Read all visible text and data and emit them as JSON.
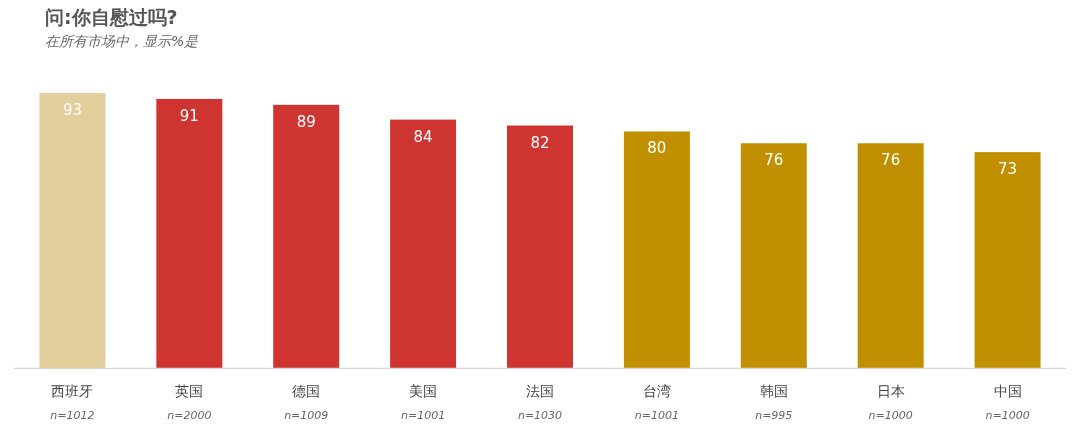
{
  "chart_data": {
    "type": "bar",
    "title": "问:你自慰过吗?",
    "subtitle": "在所有市场中，显示%是",
    "categories": [
      "西班牙",
      "英国",
      "德国",
      "美国",
      "法国",
      "台湾",
      "韩国",
      "日本",
      "中国"
    ],
    "values": [
      93,
      91,
      89,
      84,
      82,
      80,
      76,
      76,
      73
    ],
    "colors": [
      "#e3cf9c",
      "#cf3530",
      "#cf3530",
      "#cf3530",
      "#cf3530",
      "#c09000",
      "#c09000",
      "#c09000",
      "#c09000"
    ],
    "data_labels": true,
    "annotations": [
      "n=1012",
      "n=2000",
      "n=1009",
      "n=1001",
      "n=1030",
      "n=1001",
      "n=995",
      "n=1000",
      "n=1000"
    ]
  }
}
